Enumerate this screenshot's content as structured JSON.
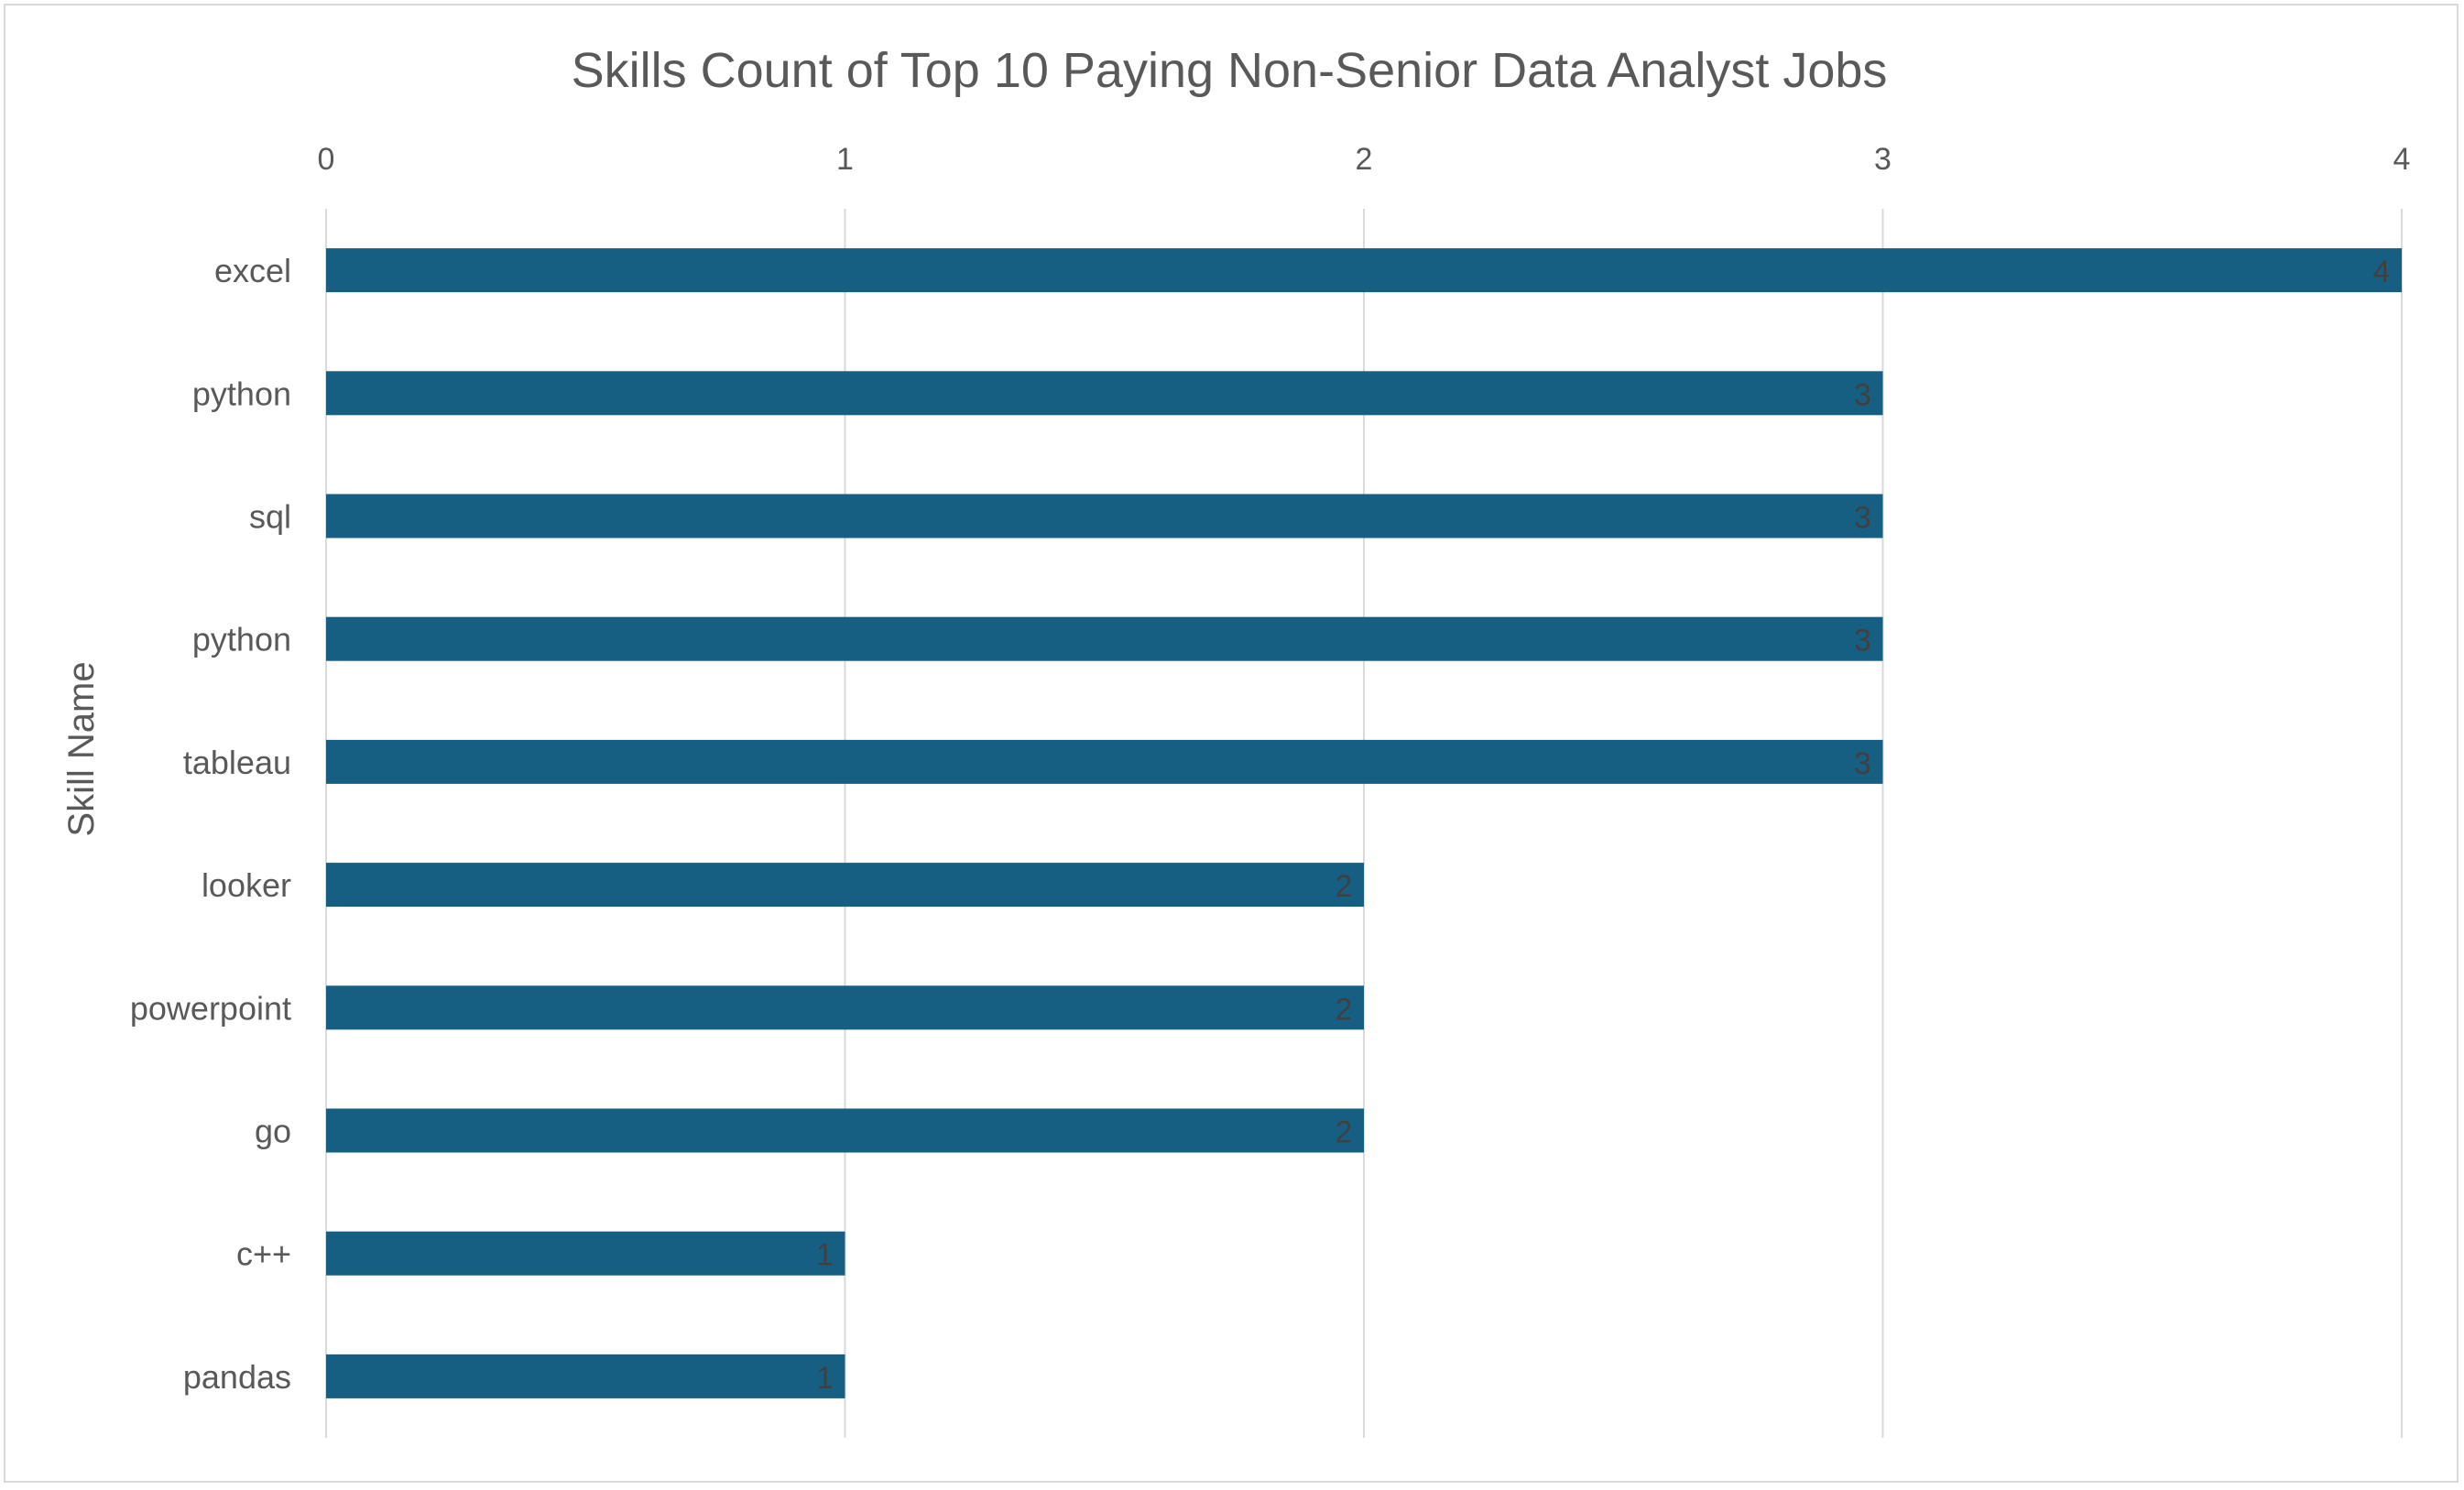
{
  "chart_data": {
    "type": "bar",
    "orientation": "horizontal",
    "title": "Skills Count of Top 10 Paying Non-Senior Data Analyst Jobs",
    "xlabel": "",
    "ylabel": "Skill Name",
    "categories": [
      "excel",
      "python",
      "sql",
      "python",
      "tableau",
      "looker",
      "powerpoint",
      "go",
      "c++",
      "pandas"
    ],
    "series": [
      {
        "values": [
          4,
          3,
          3,
          3,
          3,
          2,
          2,
          2,
          1,
          1
        ]
      }
    ],
    "xlim": [
      0,
      4
    ],
    "x_ticks": [
      "0",
      "1",
      "2",
      "3",
      "4"
    ],
    "x_axis_position": "top",
    "grid": true,
    "legend": "none",
    "data_labels": true,
    "colors": {
      "bar": "#175f82",
      "grid": "#d9d9d9",
      "text": "#595959",
      "data_label": "#404040",
      "border": "#d9d9d9"
    }
  }
}
